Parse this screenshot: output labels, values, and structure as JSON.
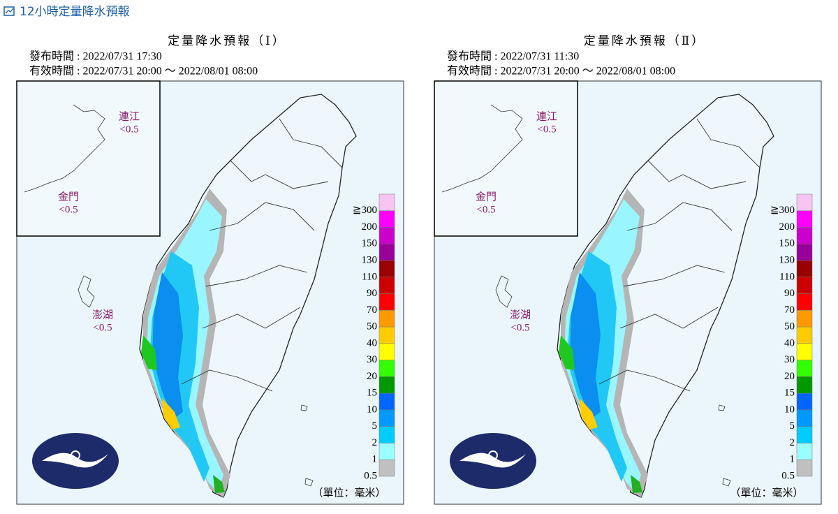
{
  "header": {
    "title": "12小時定量降水預報"
  },
  "panels": [
    {
      "title": "定量降水預報（Ⅰ）",
      "issued": "發布時間 : 2022/07/31 17:30",
      "valid": "有效時間 : 2022/07/31 20:00 ～ 2022/08/01 08:00",
      "places": [
        {
          "name": "連江",
          "value": "<0.5"
        },
        {
          "name": "金門",
          "value": "<0.5"
        },
        {
          "name": "澎湖",
          "value": "<0.5"
        }
      ],
      "unit": "（單位：毫米）"
    },
    {
      "title": "定量降水預報（Ⅱ）",
      "issued": "發布時間 : 2022/07/31 11:30",
      "valid": "有效時間 : 2022/07/31 20:00 ～ 2022/08/01 08:00",
      "places": [
        {
          "name": "連江",
          "value": "<0.5"
        },
        {
          "name": "金門",
          "value": "<0.5"
        },
        {
          "name": "澎湖",
          "value": "<0.5"
        }
      ],
      "unit": "（單位：毫米）"
    }
  ],
  "legend": {
    "labels": [
      "≧300",
      "200",
      "150",
      "130",
      "110",
      "90",
      "70",
      "50",
      "40",
      "30",
      "20",
      "15",
      "10",
      "5",
      "2",
      "1",
      "0.5"
    ],
    "colors": [
      "#f8c4f2",
      "#ff00ff",
      "#cc00cc",
      "#990099",
      "#990000",
      "#cc0000",
      "#ff0000",
      "#ff9900",
      "#ffcc00",
      "#ffff00",
      "#33ff00",
      "#009900",
      "#0066ff",
      "#0099ff",
      "#00ccff",
      "#99ffff",
      "#c0c0c0"
    ]
  }
}
